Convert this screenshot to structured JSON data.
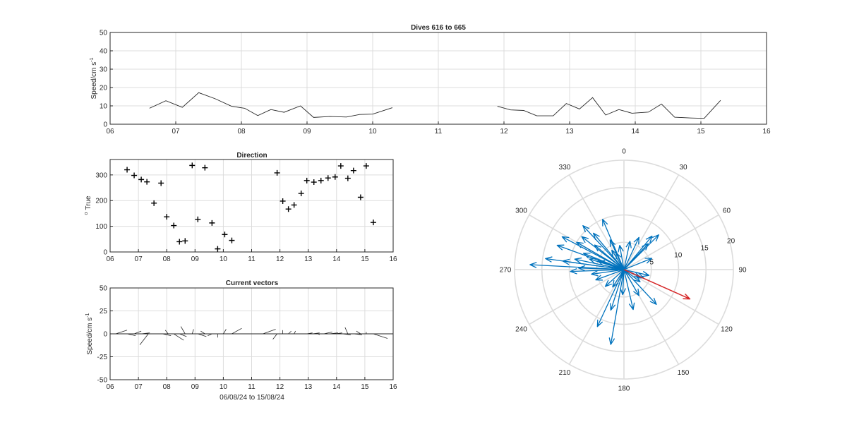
{
  "chart_data": [
    {
      "type": "line",
      "title": "Dives 616 to 665",
      "ylabel": "Speed/cm s",
      "ylabel_sup": "-1",
      "xlim": [
        6,
        16
      ],
      "ylim": [
        0,
        50
      ],
      "yticks": [
        0,
        10,
        20,
        30,
        40,
        50
      ],
      "xticks": [
        6,
        7,
        8,
        9,
        10,
        11,
        12,
        13,
        14,
        15,
        16
      ],
      "xticklabels": [
        "06",
        "07",
        "08",
        "09",
        "10",
        "11",
        "12",
        "13",
        "14",
        "15",
        "16"
      ],
      "grid": true,
      "series": [
        {
          "x": [
            6.6,
            6.85,
            7.1,
            7.35,
            7.6,
            7.85,
            8.05,
            8.25,
            8.45,
            8.65,
            8.9,
            9.1,
            9.35,
            9.6,
            9.8,
            10.0,
            10.3
          ],
          "y": [
            8.7,
            12.8,
            9.2,
            17.2,
            13.9,
            9.8,
            8.7,
            4.7,
            8.0,
            6.5,
            10.0,
            3.7,
            4.2,
            3.9,
            5.3,
            5.5,
            9.0
          ]
        },
        {
          "x": [
            11.9,
            12.1,
            12.3,
            12.5,
            12.75,
            12.95,
            13.15,
            13.35,
            13.55,
            13.75,
            13.95,
            14.2,
            14.4,
            14.6,
            14.85,
            15.05,
            15.3
          ],
          "y": [
            9.8,
            7.8,
            7.5,
            4.6,
            4.6,
            11.3,
            8.3,
            14.5,
            5.0,
            8.0,
            6.0,
            6.6,
            11.0,
            3.8,
            3.4,
            3.2,
            13.0
          ]
        }
      ]
    },
    {
      "type": "scatter",
      "title": "Direction",
      "ylabel": "True",
      "ylabel_prefix": "o",
      "xlim": [
        6,
        16
      ],
      "ylim": [
        0,
        360
      ],
      "yticks": [
        0,
        100,
        200,
        300
      ],
      "xticks": [
        6,
        7,
        8,
        9,
        10,
        11,
        12,
        13,
        14,
        15,
        16
      ],
      "xticklabels": [
        "06",
        "07",
        "08",
        "09",
        "10",
        "11",
        "12",
        "13",
        "14",
        "15",
        "16"
      ],
      "grid": true,
      "marker": "+",
      "x": [
        6.6,
        6.85,
        7.1,
        7.3,
        7.55,
        7.8,
        8.0,
        8.25,
        8.45,
        8.65,
        8.9,
        9.1,
        9.35,
        9.6,
        9.8,
        10.05,
        10.3,
        11.9,
        12.1,
        12.3,
        12.5,
        12.75,
        12.95,
        13.2,
        13.45,
        13.7,
        13.95,
        14.15,
        14.4,
        14.6,
        14.85,
        15.05,
        15.3
      ],
      "y": [
        320,
        298,
        282,
        273,
        190,
        268,
        137,
        103,
        40,
        43,
        337,
        127,
        328,
        113,
        12,
        68,
        45,
        308,
        198,
        167,
        183,
        228,
        278,
        272,
        278,
        288,
        292,
        335,
        287,
        317,
        213,
        335,
        115
      ]
    },
    {
      "type": "line",
      "title": "Current vectors",
      "ylabel": "Speed/cm s",
      "ylabel_sup": "-1",
      "xlabel": "06/08/24 to 15/08/24",
      "xlim": [
        6,
        16
      ],
      "ylim": [
        -50,
        50
      ],
      "yticks": [
        -50,
        -25,
        0,
        25,
        50
      ],
      "xticks": [
        6,
        7,
        8,
        9,
        10,
        11,
        12,
        13,
        14,
        15,
        16
      ],
      "xticklabels": [
        "06",
        "07",
        "08",
        "09",
        "10",
        "11",
        "12",
        "13",
        "14",
        "15",
        "16"
      ],
      "grid": true,
      "series": [
        {
          "name": "zero",
          "x": [
            6,
            16
          ],
          "y": [
            0,
            0
          ]
        }
      ],
      "vectors": {
        "x": [
          6.2,
          6.6,
          6.85,
          7.1,
          7.35,
          7.6,
          7.85,
          8.05,
          8.25,
          8.45,
          8.65,
          8.9,
          9.1,
          9.35,
          9.6,
          9.8,
          10.0,
          10.3,
          11.4,
          11.9,
          12.1,
          12.3,
          12.5,
          12.75,
          12.95,
          13.15,
          13.35,
          13.55,
          13.75,
          13.95,
          14.2,
          14.4,
          14.6,
          14.85,
          15.05,
          15.3
        ],
        "dx": [
          0.4,
          0.3,
          0.25,
          0.3,
          -0.3,
          0.5,
          0.3,
          -0.1,
          0.35,
          0.25,
          -0.15,
          0.05,
          0.3,
          -0.15,
          -0.15,
          0.0,
          0.1,
          0.35,
          0.45,
          -0.15,
          0.0,
          0.1,
          0.05,
          0.3,
          0.2,
          0.25,
          0.05,
          0.3,
          0.3,
          0.25,
          0.3,
          -0.1,
          0.3,
          -0.15,
          0.0,
          0.5
        ],
        "dy": [
          4,
          -2,
          3,
          1,
          -12,
          0,
          -2,
          4,
          -7,
          -3,
          8,
          5,
          -3,
          3,
          -2,
          -4,
          5,
          6,
          5,
          -6,
          4,
          3,
          3,
          0,
          1,
          1,
          -1,
          2,
          1,
          1,
          -1,
          7,
          -1,
          3,
          2,
          -5
        ]
      }
    },
    {
      "type": "scatter",
      "subtype": "compass",
      "angle_ticks": [
        0,
        30,
        60,
        90,
        120,
        150,
        180,
        210,
        240,
        270,
        300,
        330
      ],
      "radial_ticks": [
        5,
        10,
        15,
        20
      ],
      "rmax": 20,
      "colors": {
        "vectors": "#0072BD",
        "mean": "#D62728"
      },
      "vectors": {
        "direction": [
          320,
          298,
          282,
          273,
          190,
          268,
          137,
          103,
          40,
          43,
          337,
          127,
          328,
          113,
          12,
          68,
          45,
          308,
          198,
          167,
          183,
          228,
          278,
          272,
          278,
          288,
          292,
          335,
          287,
          317,
          213,
          335,
          115,
          290,
          300,
          310,
          250,
          262,
          350,
          25,
          150,
          205
        ],
        "speed": [
          8.7,
          12.8,
          9.2,
          17.2,
          13.9,
          9.8,
          8.7,
          4.7,
          8.0,
          6.5,
          10.0,
          3.7,
          4.2,
          3.9,
          5.3,
          5.5,
          9.0,
          9.8,
          7.8,
          7.5,
          4.6,
          4.6,
          11.3,
          8.3,
          14.5,
          5.0,
          8.0,
          6.0,
          6.6,
          11.0,
          3.8,
          3.4,
          3.2,
          13.0,
          10.0,
          7.0,
          5.5,
          6.0,
          4.5,
          6.5,
          5.5,
          11.5
        ]
      },
      "mean_vector": {
        "direction": 114,
        "speed": 13.2
      }
    }
  ]
}
